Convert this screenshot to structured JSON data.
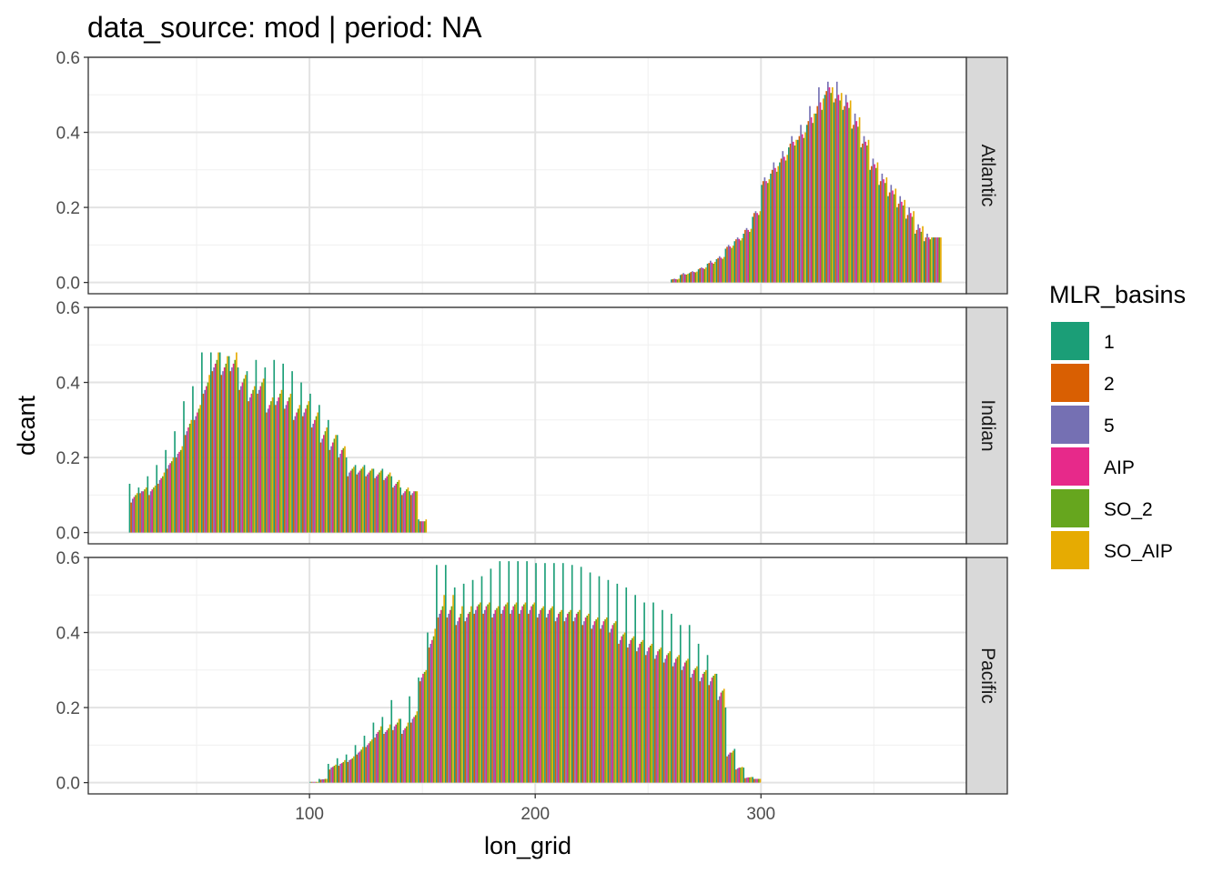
{
  "title": "data_source: mod | period: NA",
  "chart_data": {
    "type": "bar",
    "title": "data_source: mod | period: NA",
    "xlabel": "lon_grid",
    "ylabel": "dcant",
    "x_ticks": [
      100,
      200,
      300
    ],
    "y_ticks": [
      "0.0",
      "0.2",
      "0.4",
      "0.6"
    ],
    "xlim": [
      2,
      391
    ],
    "ylim": [
      -0.03,
      0.6
    ],
    "grid": true,
    "legend": {
      "title": "MLR_basins",
      "position": "right",
      "entries": [
        {
          "label": "1",
          "color": "#1B9E77"
        },
        {
          "label": "2",
          "color": "#D95F02"
        },
        {
          "label": "5",
          "color": "#7570B3"
        },
        {
          "label": "AIP",
          "color": "#E7298A"
        },
        {
          "label": "SO_2",
          "color": "#66A61E"
        },
        {
          "label": "SO_AIP",
          "color": "#E6AB02"
        }
      ]
    },
    "series_order": [
      "1",
      "2",
      "5",
      "AIP",
      "SO_2",
      "SO_AIP"
    ],
    "group_width_deg": 4,
    "facets": [
      {
        "label": "Atlantic",
        "x": [
          262,
          266,
          270,
          274,
          278,
          282,
          286,
          290,
          294,
          298,
          302,
          306,
          310,
          314,
          318,
          322,
          326,
          330,
          334,
          338,
          342,
          346,
          350,
          354,
          358,
          362,
          366,
          370,
          374,
          378
        ],
        "series": {
          "1": [
            0.008,
            0.02,
            0.025,
            0.035,
            0.05,
            0.062,
            0.09,
            0.11,
            0.13,
            0.175,
            0.26,
            0.29,
            0.32,
            0.36,
            0.38,
            0.42,
            0.45,
            0.5,
            0.48,
            0.46,
            0.41,
            0.36,
            0.3,
            0.26,
            0.23,
            0.2,
            0.17,
            0.13,
            0.11,
            0.12
          ],
          "2": [
            0.009,
            0.022,
            0.028,
            0.038,
            0.052,
            0.065,
            0.095,
            0.115,
            0.14,
            0.185,
            0.27,
            0.3,
            0.33,
            0.37,
            0.39,
            0.43,
            0.47,
            0.51,
            0.49,
            0.47,
            0.42,
            0.37,
            0.31,
            0.27,
            0.24,
            0.21,
            0.18,
            0.14,
            0.12,
            0.12
          ],
          "5": [
            0.01,
            0.025,
            0.03,
            0.04,
            0.058,
            0.07,
            0.1,
            0.12,
            0.145,
            0.19,
            0.28,
            0.32,
            0.35,
            0.39,
            0.42,
            0.47,
            0.52,
            0.535,
            0.535,
            0.5,
            0.45,
            0.39,
            0.33,
            0.29,
            0.26,
            0.23,
            0.2,
            0.155,
            0.13,
            0.12
          ],
          "AIP": [
            0.009,
            0.022,
            0.028,
            0.038,
            0.053,
            0.066,
            0.096,
            0.116,
            0.14,
            0.185,
            0.27,
            0.305,
            0.335,
            0.375,
            0.395,
            0.44,
            0.48,
            0.52,
            0.5,
            0.48,
            0.43,
            0.375,
            0.315,
            0.275,
            0.245,
            0.215,
            0.185,
            0.145,
            0.12,
            0.12
          ],
          "SO_2": [
            0.008,
            0.021,
            0.027,
            0.036,
            0.05,
            0.063,
            0.092,
            0.112,
            0.135,
            0.18,
            0.265,
            0.295,
            0.325,
            0.365,
            0.385,
            0.425,
            0.46,
            0.505,
            0.485,
            0.465,
            0.415,
            0.365,
            0.305,
            0.265,
            0.235,
            0.205,
            0.175,
            0.135,
            0.115,
            0.12
          ],
          "SO_AIP": [
            0.01,
            0.023,
            0.029,
            0.04,
            0.055,
            0.068,
            0.098,
            0.118,
            0.143,
            0.19,
            0.275,
            0.31,
            0.34,
            0.38,
            0.4,
            0.45,
            0.49,
            0.52,
            0.505,
            0.485,
            0.44,
            0.38,
            0.32,
            0.28,
            0.25,
            0.22,
            0.19,
            0.15,
            0.12,
            0.12
          ]
        }
      },
      {
        "label": "Indian",
        "x": [
          22,
          26,
          30,
          34,
          38,
          42,
          46,
          50,
          54,
          58,
          62,
          66,
          70,
          74,
          78,
          82,
          86,
          90,
          94,
          98,
          102,
          106,
          110,
          114,
          118,
          122,
          126,
          130,
          134,
          138,
          142,
          146,
          150
        ],
        "series": {
          "1": [
            0.13,
            0.12,
            0.15,
            0.18,
            0.22,
            0.27,
            0.35,
            0.39,
            0.48,
            0.48,
            0.48,
            0.47,
            0.44,
            0.43,
            0.46,
            0.44,
            0.46,
            0.45,
            0.43,
            0.4,
            0.37,
            0.34,
            0.3,
            0.26,
            0.2,
            0.18,
            0.18,
            0.17,
            0.17,
            0.15,
            0.12,
            0.11,
            0.035
          ],
          "2": [
            0.08,
            0.105,
            0.1,
            0.13,
            0.17,
            0.2,
            0.26,
            0.3,
            0.37,
            0.43,
            0.42,
            0.43,
            0.38,
            0.35,
            0.37,
            0.32,
            0.34,
            0.33,
            0.3,
            0.31,
            0.28,
            0.24,
            0.22,
            0.2,
            0.15,
            0.155,
            0.15,
            0.145,
            0.14,
            0.12,
            0.1,
            0.1,
            0.03
          ],
          "5": [
            0.09,
            0.11,
            0.11,
            0.14,
            0.18,
            0.21,
            0.27,
            0.31,
            0.38,
            0.44,
            0.43,
            0.44,
            0.39,
            0.36,
            0.38,
            0.33,
            0.35,
            0.34,
            0.31,
            0.32,
            0.29,
            0.25,
            0.23,
            0.21,
            0.16,
            0.16,
            0.155,
            0.15,
            0.145,
            0.125,
            0.105,
            0.105,
            0.03
          ],
          "AIP": [
            0.095,
            0.11,
            0.115,
            0.145,
            0.185,
            0.215,
            0.28,
            0.32,
            0.39,
            0.45,
            0.44,
            0.45,
            0.4,
            0.37,
            0.39,
            0.34,
            0.36,
            0.35,
            0.32,
            0.33,
            0.3,
            0.26,
            0.24,
            0.22,
            0.165,
            0.165,
            0.16,
            0.155,
            0.15,
            0.13,
            0.11,
            0.11,
            0.03
          ],
          "SO_2": [
            0.1,
            0.115,
            0.12,
            0.15,
            0.19,
            0.22,
            0.29,
            0.33,
            0.4,
            0.46,
            0.45,
            0.46,
            0.41,
            0.38,
            0.4,
            0.35,
            0.37,
            0.36,
            0.33,
            0.34,
            0.31,
            0.27,
            0.25,
            0.225,
            0.17,
            0.17,
            0.165,
            0.16,
            0.155,
            0.135,
            0.115,
            0.11,
            0.03
          ],
          "SO_AIP": [
            0.105,
            0.12,
            0.125,
            0.16,
            0.2,
            0.23,
            0.3,
            0.34,
            0.42,
            0.48,
            0.47,
            0.48,
            0.42,
            0.39,
            0.41,
            0.36,
            0.38,
            0.37,
            0.34,
            0.35,
            0.32,
            0.28,
            0.26,
            0.23,
            0.175,
            0.175,
            0.17,
            0.165,
            0.16,
            0.14,
            0.12,
            0.11,
            0.035
          ]
        }
      },
      {
        "label": "Pacific",
        "x": [
          102,
          106,
          110,
          114,
          118,
          122,
          126,
          130,
          134,
          138,
          142,
          146,
          150,
          154,
          158,
          162,
          166,
          170,
          174,
          178,
          182,
          186,
          190,
          194,
          198,
          202,
          206,
          210,
          214,
          218,
          222,
          226,
          230,
          234,
          238,
          242,
          246,
          250,
          254,
          258,
          262,
          266,
          270,
          274,
          278,
          282,
          286,
          290,
          294,
          298
        ],
        "series": {
          "1": [
            0.002,
            0.01,
            0.05,
            0.065,
            0.075,
            0.1,
            0.125,
            0.16,
            0.175,
            0.22,
            0.17,
            0.23,
            0.28,
            0.4,
            0.58,
            0.58,
            0.52,
            0.53,
            0.54,
            0.55,
            0.57,
            0.59,
            0.59,
            0.59,
            0.59,
            0.585,
            0.585,
            0.585,
            0.585,
            0.58,
            0.575,
            0.56,
            0.55,
            0.54,
            0.53,
            0.52,
            0.5,
            0.48,
            0.48,
            0.46,
            0.45,
            0.42,
            0.42,
            0.37,
            0.34,
            0.29,
            0.2,
            0.09,
            0.04,
            0.015
          ],
          "2": [
            0.002,
            0.008,
            0.035,
            0.045,
            0.055,
            0.075,
            0.095,
            0.12,
            0.13,
            0.14,
            0.13,
            0.16,
            0.27,
            0.36,
            0.44,
            0.44,
            0.42,
            0.43,
            0.45,
            0.45,
            0.44,
            0.45,
            0.45,
            0.45,
            0.45,
            0.44,
            0.44,
            0.43,
            0.43,
            0.43,
            0.42,
            0.41,
            0.41,
            0.4,
            0.37,
            0.36,
            0.35,
            0.34,
            0.33,
            0.32,
            0.31,
            0.3,
            0.28,
            0.27,
            0.26,
            0.22,
            0.07,
            0.035,
            0.012,
            0.01
          ],
          "5": [
            0.002,
            0.009,
            0.04,
            0.05,
            0.06,
            0.08,
            0.1,
            0.13,
            0.135,
            0.15,
            0.14,
            0.17,
            0.28,
            0.37,
            0.45,
            0.45,
            0.43,
            0.44,
            0.46,
            0.46,
            0.45,
            0.46,
            0.46,
            0.46,
            0.46,
            0.45,
            0.45,
            0.44,
            0.44,
            0.44,
            0.43,
            0.42,
            0.42,
            0.41,
            0.38,
            0.37,
            0.36,
            0.35,
            0.34,
            0.33,
            0.32,
            0.31,
            0.29,
            0.28,
            0.27,
            0.23,
            0.075,
            0.038,
            0.013,
            0.01
          ],
          "AIP": [
            0.002,
            0.009,
            0.042,
            0.052,
            0.062,
            0.083,
            0.105,
            0.135,
            0.14,
            0.155,
            0.145,
            0.175,
            0.29,
            0.38,
            0.46,
            0.46,
            0.44,
            0.45,
            0.47,
            0.47,
            0.46,
            0.47,
            0.47,
            0.47,
            0.47,
            0.46,
            0.46,
            0.45,
            0.45,
            0.45,
            0.44,
            0.43,
            0.43,
            0.42,
            0.39,
            0.38,
            0.37,
            0.36,
            0.35,
            0.34,
            0.33,
            0.32,
            0.3,
            0.29,
            0.28,
            0.24,
            0.08,
            0.04,
            0.014,
            0.01
          ],
          "SO_2": [
            0.002,
            0.01,
            0.045,
            0.055,
            0.065,
            0.088,
            0.11,
            0.14,
            0.145,
            0.16,
            0.15,
            0.18,
            0.295,
            0.39,
            0.47,
            0.47,
            0.45,
            0.455,
            0.475,
            0.475,
            0.465,
            0.475,
            0.475,
            0.475,
            0.475,
            0.465,
            0.465,
            0.455,
            0.455,
            0.455,
            0.445,
            0.435,
            0.435,
            0.425,
            0.395,
            0.385,
            0.375,
            0.365,
            0.355,
            0.345,
            0.335,
            0.325,
            0.305,
            0.295,
            0.285,
            0.245,
            0.08,
            0.04,
            0.014,
            0.01
          ],
          "SO_AIP": [
            0.002,
            0.01,
            0.048,
            0.06,
            0.07,
            0.095,
            0.115,
            0.15,
            0.155,
            0.17,
            0.16,
            0.19,
            0.3,
            0.41,
            0.5,
            0.5,
            0.47,
            0.47,
            0.48,
            0.48,
            0.47,
            0.48,
            0.48,
            0.48,
            0.48,
            0.47,
            0.47,
            0.46,
            0.46,
            0.46,
            0.45,
            0.44,
            0.44,
            0.43,
            0.4,
            0.39,
            0.38,
            0.37,
            0.36,
            0.35,
            0.34,
            0.33,
            0.31,
            0.3,
            0.29,
            0.25,
            0.085,
            0.042,
            0.015,
            0.01
          ]
        }
      }
    ]
  }
}
